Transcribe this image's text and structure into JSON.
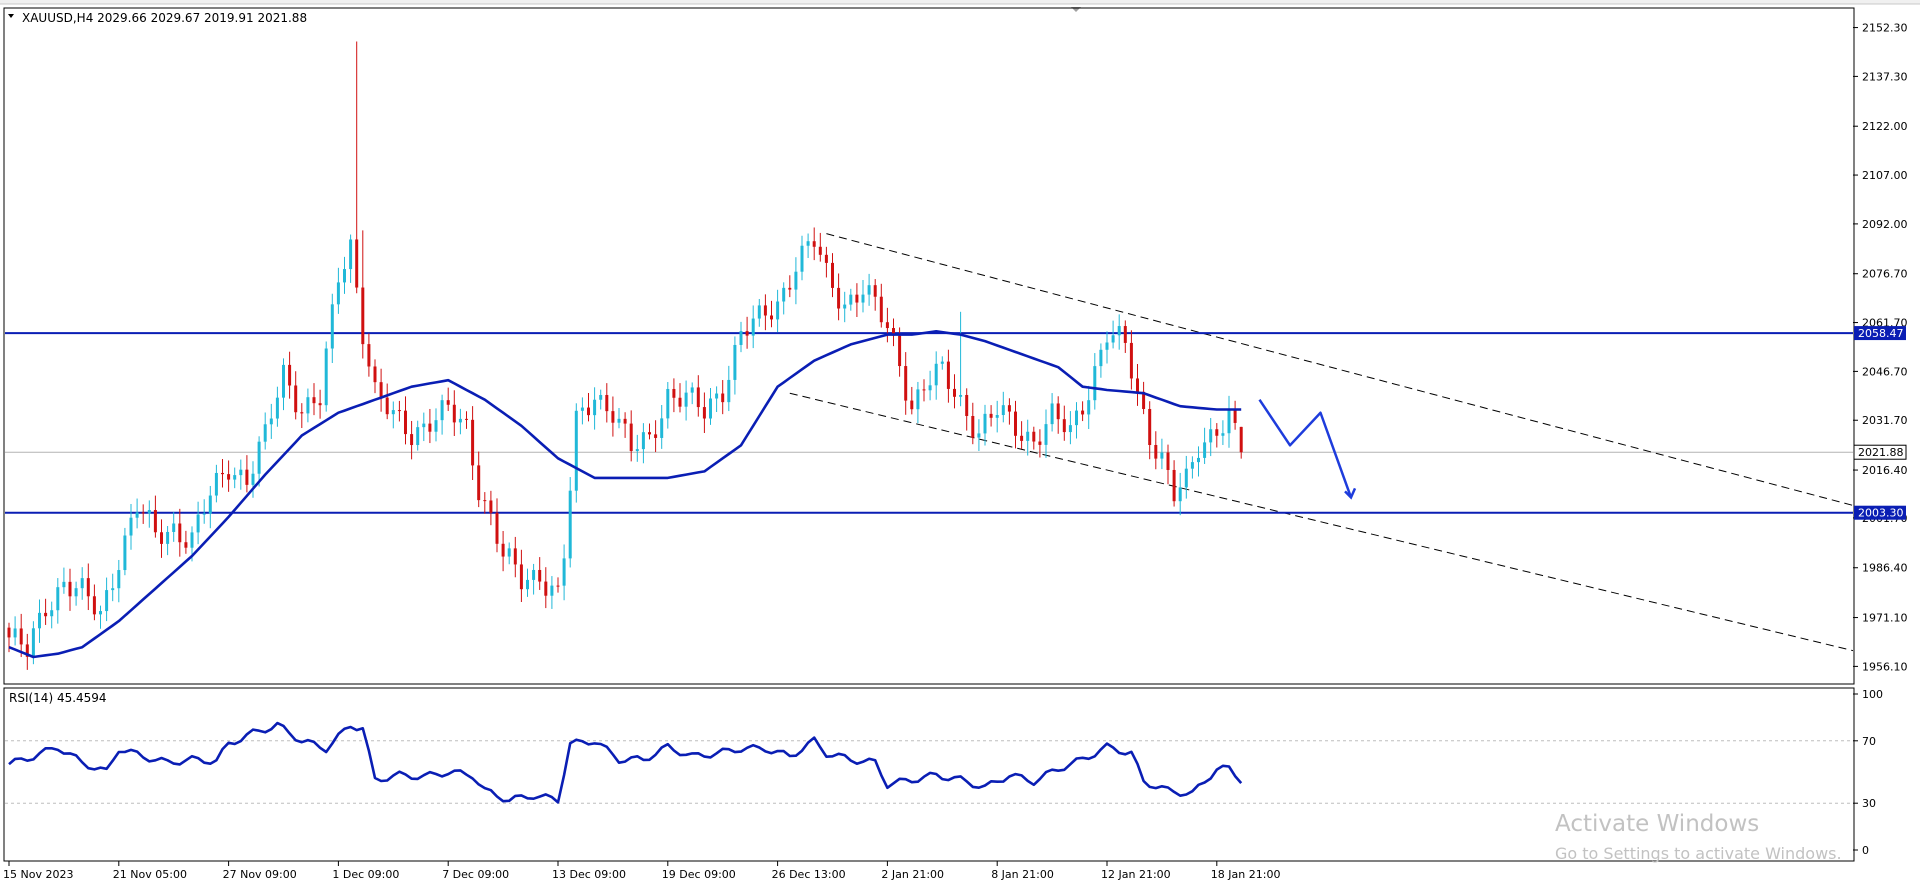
{
  "header": {
    "symbol_line": "XAUUSD,H4  2029.66 2029.67 2019.91 2021.88"
  },
  "colors": {
    "bull": "#20b8d8",
    "bear": "#d01010",
    "ma": "#0a1eb4",
    "level": "#0a1eb4",
    "rsi": "#0a1eb4",
    "arrow": "#1e3cdc",
    "axis": "#000000"
  },
  "chart_data": [
    {
      "type": "candlestick",
      "symbol": "XAUUSD",
      "timeframe": "H4",
      "ohlc_last": {
        "open": 2029.66,
        "high": 2029.67,
        "low": 2019.91,
        "close": 2021.88
      },
      "ylim": [
        1951.0,
        2158.0
      ],
      "y_ticks": [
        "2152.30",
        "2137.30",
        "2122.00",
        "2107.00",
        "2092.00",
        "2076.70",
        "2061.70",
        "2046.70",
        "2031.70",
        "2016.40",
        "2001.70",
        "1986.40",
        "1971.10",
        "1956.10"
      ],
      "x_ticks": [
        "15 Nov 2023",
        "21 Nov 05:00",
        "27 Nov 09:00",
        "1 Dec 09:00",
        "7 Dec 09:00",
        "13 Dec 09:00",
        "19 Dec 09:00",
        "26 Dec 13:00",
        "2 Jan 21:00",
        "8 Jan 21:00",
        "12 Jan 21:00",
        "18 Jan 21:00"
      ],
      "x_tick_bar_index": [
        0,
        18,
        36,
        54,
        72,
        90,
        108,
        126,
        144,
        162,
        180,
        198
      ],
      "close_path": [
        [
          0,
          1965
        ],
        [
          3,
          1960
        ],
        [
          6,
          1975
        ],
        [
          9,
          1982
        ],
        [
          12,
          1978
        ],
        [
          15,
          1972
        ],
        [
          18,
          1990
        ],
        [
          21,
          2005
        ],
        [
          24,
          1996
        ],
        [
          27,
          1999
        ],
        [
          30,
          1995
        ],
        [
          33,
          2008
        ],
        [
          36,
          2018
        ],
        [
          39,
          2014
        ],
        [
          42,
          2026
        ],
        [
          45,
          2046
        ],
        [
          48,
          2036
        ],
        [
          51,
          2038
        ],
        [
          54,
          2075
        ],
        [
          56,
          2086
        ],
        [
          58,
          2060
        ],
        [
          60,
          2040
        ],
        [
          63,
          2032
        ],
        [
          66,
          2028
        ],
        [
          69,
          2032
        ],
        [
          72,
          2034
        ],
        [
          75,
          2029
        ],
        [
          77,
          2012
        ],
        [
          79,
          2002
        ],
        [
          81,
          1990
        ],
        [
          84,
          1982
        ],
        [
          87,
          1985
        ],
        [
          90,
          1978
        ],
        [
          91,
          1990
        ],
        [
          93,
          2030
        ],
        [
          96,
          2040
        ],
        [
          99,
          2035
        ],
        [
          102,
          2022
        ],
        [
          105,
          2026
        ],
        [
          108,
          2040
        ],
        [
          111,
          2038
        ],
        [
          114,
          2034
        ],
        [
          117,
          2042
        ],
        [
          120,
          2058
        ],
        [
          123,
          2062
        ],
        [
          126,
          2068
        ],
        [
          129,
          2080
        ],
        [
          132,
          2086
        ],
        [
          134,
          2076
        ],
        [
          137,
          2068
        ],
        [
          140,
          2072
        ],
        [
          144,
          2060
        ],
        [
          146,
          2050
        ],
        [
          148,
          2036
        ],
        [
          150,
          2042
        ],
        [
          153,
          2046
        ],
        [
          156,
          2038
        ],
        [
          159,
          2028
        ],
        [
          162,
          2034
        ],
        [
          165,
          2030
        ],
        [
          168,
          2026
        ],
        [
          171,
          2032
        ],
        [
          174,
          2028
        ],
        [
          177,
          2042
        ],
        [
          180,
          2058
        ],
        [
          183,
          2054
        ],
        [
          185,
          2040
        ],
        [
          187,
          2028
        ],
        [
          189,
          2020
        ],
        [
          191,
          2008
        ],
        [
          193,
          2012
        ],
        [
          195,
          2024
        ],
        [
          198,
          2030
        ],
        [
          200,
          2032
        ],
        [
          202,
          2022
        ]
      ],
      "spike_bars": [
        {
          "i": 57,
          "high": 2148.0
        },
        {
          "i": 58,
          "high": 2090.0
        },
        {
          "i": 156,
          "high": 2065.0
        }
      ],
      "moving_average": [
        [
          0,
          1962
        ],
        [
          4,
          1959
        ],
        [
          8,
          1960
        ],
        [
          12,
          1962
        ],
        [
          18,
          1970
        ],
        [
          24,
          1980
        ],
        [
          30,
          1990
        ],
        [
          36,
          2002
        ],
        [
          42,
          2015
        ],
        [
          48,
          2027
        ],
        [
          54,
          2034
        ],
        [
          60,
          2038
        ],
        [
          66,
          2042
        ],
        [
          72,
          2044
        ],
        [
          78,
          2038
        ],
        [
          84,
          2030
        ],
        [
          90,
          2020
        ],
        [
          96,
          2014
        ],
        [
          102,
          2014
        ],
        [
          108,
          2014
        ],
        [
          114,
          2016
        ],
        [
          120,
          2024
        ],
        [
          126,
          2042
        ],
        [
          132,
          2050
        ],
        [
          138,
          2055
        ],
        [
          144,
          2058
        ],
        [
          148,
          2058
        ],
        [
          152,
          2059
        ],
        [
          156,
          2058
        ],
        [
          160,
          2056
        ],
        [
          166,
          2052
        ],
        [
          172,
          2048
        ],
        [
          176,
          2042
        ],
        [
          180,
          2041
        ],
        [
          186,
          2040
        ],
        [
          192,
          2036
        ],
        [
          198,
          2035
        ],
        [
          202,
          2035
        ]
      ],
      "levels": [
        {
          "price": 2058.47,
          "label": "2058.47"
        },
        {
          "price": 2003.3,
          "label": "2003.30"
        }
      ],
      "current_price": {
        "price": 2021.88,
        "label": "2021.88"
      },
      "channel": {
        "upper": [
          [
            134,
            2089
          ],
          [
            380,
            1967
          ]
        ],
        "lower": [
          [
            128,
            2040
          ],
          [
            322,
            1952
          ]
        ]
      },
      "forecast_arrow": [
        [
          205,
          2038
        ],
        [
          210,
          2024
        ],
        [
          215,
          2034
        ],
        [
          220,
          2008
        ]
      ]
    },
    {
      "type": "line",
      "title": "RSI(14) 45.4594",
      "ylim": [
        0,
        100
      ],
      "y_ticks": [
        "100",
        "70",
        "30",
        "0"
      ],
      "guide_levels": [
        70,
        30
      ],
      "values": [
        [
          0,
          55
        ],
        [
          4,
          60
        ],
        [
          8,
          66
        ],
        [
          12,
          56
        ],
        [
          16,
          50
        ],
        [
          18,
          65
        ],
        [
          22,
          60
        ],
        [
          26,
          56
        ],
        [
          30,
          58
        ],
        [
          34,
          57
        ],
        [
          36,
          68
        ],
        [
          40,
          75
        ],
        [
          44,
          80
        ],
        [
          48,
          70
        ],
        [
          52,
          65
        ],
        [
          56,
          80
        ],
        [
          58,
          78
        ],
        [
          60,
          45
        ],
        [
          64,
          48
        ],
        [
          68,
          47
        ],
        [
          72,
          50
        ],
        [
          76,
          48
        ],
        [
          78,
          38
        ],
        [
          82,
          32
        ],
        [
          86,
          35
        ],
        [
          90,
          32
        ],
        [
          92,
          68
        ],
        [
          96,
          70
        ],
        [
          100,
          58
        ],
        [
          104,
          58
        ],
        [
          108,
          66
        ],
        [
          112,
          60
        ],
        [
          116,
          62
        ],
        [
          120,
          65
        ],
        [
          124,
          65
        ],
        [
          128,
          60
        ],
        [
          132,
          70
        ],
        [
          134,
          62
        ],
        [
          138,
          58
        ],
        [
          142,
          56
        ],
        [
          144,
          42
        ],
        [
          148,
          45
        ],
        [
          152,
          48
        ],
        [
          156,
          45
        ],
        [
          160,
          40
        ],
        [
          164,
          48
        ],
        [
          168,
          44
        ],
        [
          172,
          52
        ],
        [
          176,
          58
        ],
        [
          180,
          66
        ],
        [
          184,
          62
        ],
        [
          186,
          44
        ],
        [
          190,
          38
        ],
        [
          194,
          36
        ],
        [
          198,
          52
        ],
        [
          200,
          52
        ],
        [
          202,
          45
        ]
      ]
    }
  ],
  "watermark": {
    "title": "Activate Windows",
    "subtitle": "Go to Settings to activate Windows."
  }
}
